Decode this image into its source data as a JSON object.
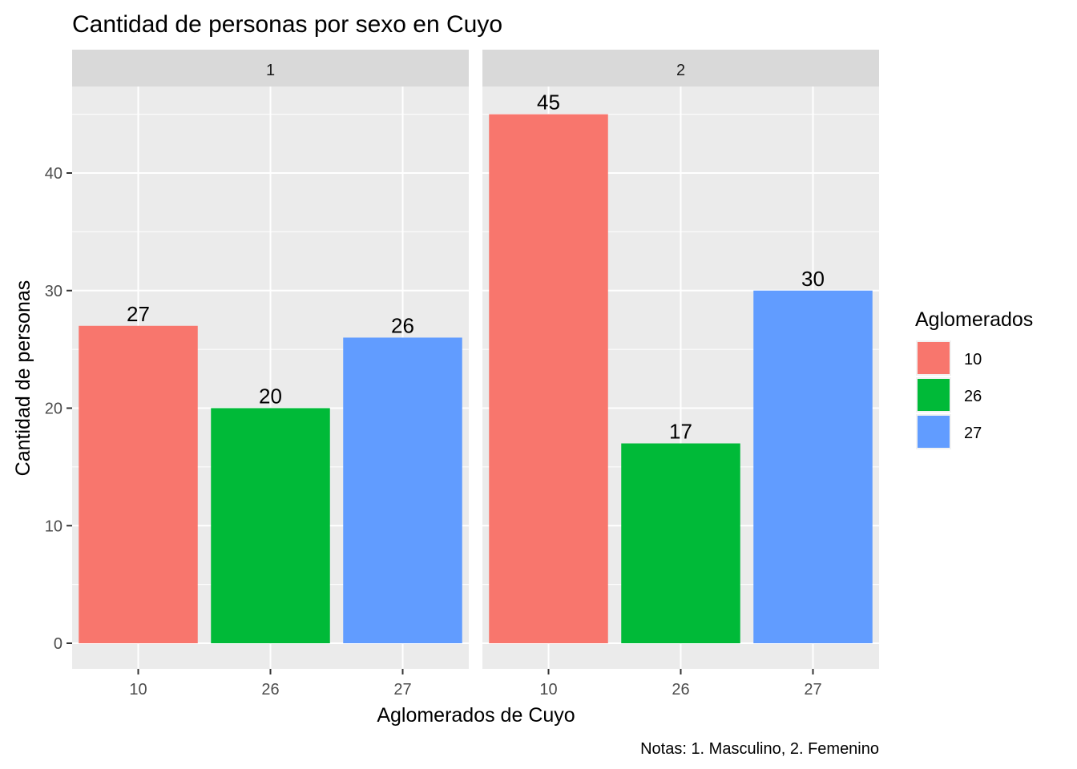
{
  "chart_data": {
    "type": "bar",
    "title": "Cantidad de personas por sexo en Cuyo",
    "xlabel": "Aglomerados de Cuyo",
    "ylabel": "Cantidad de personas",
    "caption": "Notas: 1. Masculino, 2. Femenino",
    "categories": [
      "10",
      "26",
      "27"
    ],
    "ylim": [
      0,
      47.5
    ],
    "yticks": [
      0,
      10,
      20,
      30,
      40
    ],
    "grid": true,
    "legend": {
      "title": "Aglomerados",
      "position": "right",
      "items": [
        {
          "label": "10",
          "color": "#F8766D"
        },
        {
          "label": "26",
          "color": "#00BA38"
        },
        {
          "label": "27",
          "color": "#619CFF"
        }
      ]
    },
    "facets": [
      {
        "label": "1",
        "values": [
          27,
          20,
          26
        ]
      },
      {
        "label": "2",
        "values": [
          45,
          17,
          30
        ]
      }
    ]
  }
}
